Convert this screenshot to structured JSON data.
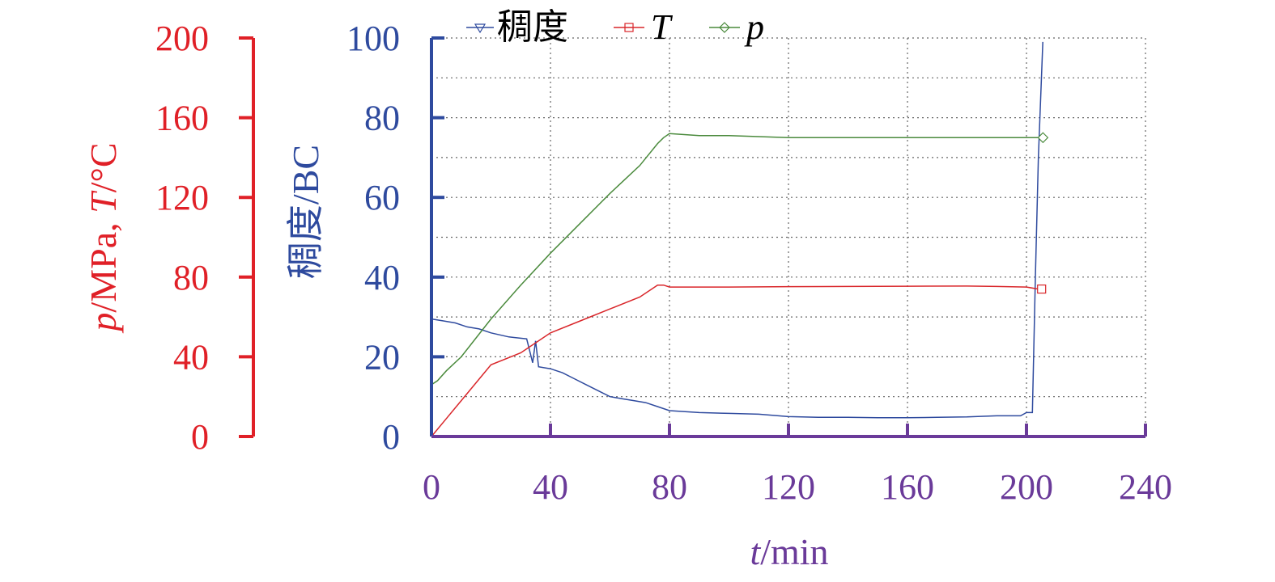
{
  "chart_data": {
    "type": "line",
    "xlabel": {
      "var": "t",
      "unit": "/min"
    },
    "ylabel_left_outer": {
      "p": "p",
      "p_unit": "/MPa, ",
      "T": "T",
      "T_unit": "/°C"
    },
    "ylabel_left_inner": "稠度/BC",
    "x_ticks": [
      "0",
      "40",
      "80",
      "120",
      "160",
      "200",
      "240"
    ],
    "y_outer_ticks": [
      "0",
      "40",
      "80",
      "120",
      "160",
      "200"
    ],
    "y_inner_ticks": [
      "0",
      "20",
      "40",
      "60",
      "80",
      "100"
    ],
    "xlim": [
      0,
      240
    ],
    "y_outer_lim": [
      0,
      200
    ],
    "y_inner_lim": [
      0,
      100
    ],
    "grid": true,
    "legend_position": "top",
    "colors": {
      "consistency": "#2E4A9E",
      "T": "#D9262A",
      "p": "#4A8A3C",
      "outer_axis": "#E02027",
      "inner_axis": "#2E4A9E",
      "x_axis": "#6A3A99"
    },
    "series": [
      {
        "key": "consistency",
        "name": "稠度",
        "axis": "inner",
        "marker": "triangle-down",
        "x": [
          0,
          4,
          8,
          12,
          16,
          20,
          26,
          32,
          34,
          35,
          36,
          40,
          44,
          48,
          52,
          56,
          60,
          64,
          68,
          72,
          76,
          80,
          90,
          100,
          110,
          120,
          130,
          140,
          150,
          160,
          170,
          180,
          190,
          198,
          200,
          202,
          203,
          204,
          205.5
        ],
        "y": [
          29.5,
          29,
          28.5,
          27.5,
          27,
          26,
          25,
          24.5,
          18.5,
          24,
          17.5,
          17,
          16,
          14.5,
          13,
          11.5,
          10,
          9.5,
          9,
          8.5,
          7.5,
          6.5,
          6,
          5.8,
          5.6,
          5,
          4.8,
          4.8,
          4.7,
          4.7,
          4.8,
          4.9,
          5.2,
          5.2,
          6,
          6,
          40,
          70,
          99
        ]
      },
      {
        "key": "T",
        "name": "T",
        "axis": "outer",
        "marker": "square",
        "x": [
          0,
          5,
          10,
          20,
          30,
          40,
          50,
          60,
          70,
          76,
          78,
          80,
          100,
          120,
          140,
          160,
          180,
          190,
          200,
          204
        ],
        "y": [
          0,
          9,
          18,
          36,
          42,
          52,
          58,
          64,
          70,
          76,
          76,
          75,
          75,
          75.2,
          75.3,
          75.4,
          75.5,
          75.3,
          75,
          74
        ]
      },
      {
        "key": "p",
        "name": "p",
        "axis": "outer",
        "marker": "diamond",
        "x": [
          0,
          2,
          5,
          10,
          20,
          30,
          40,
          50,
          60,
          70,
          76,
          78,
          80,
          90,
          100,
          120,
          140,
          160,
          180,
          200,
          205
        ],
        "y": [
          26,
          28,
          33,
          40,
          59,
          76,
          92,
          107,
          122,
          136,
          147,
          150,
          152,
          151,
          151,
          150,
          150,
          150,
          150,
          150,
          150
        ]
      }
    ]
  }
}
